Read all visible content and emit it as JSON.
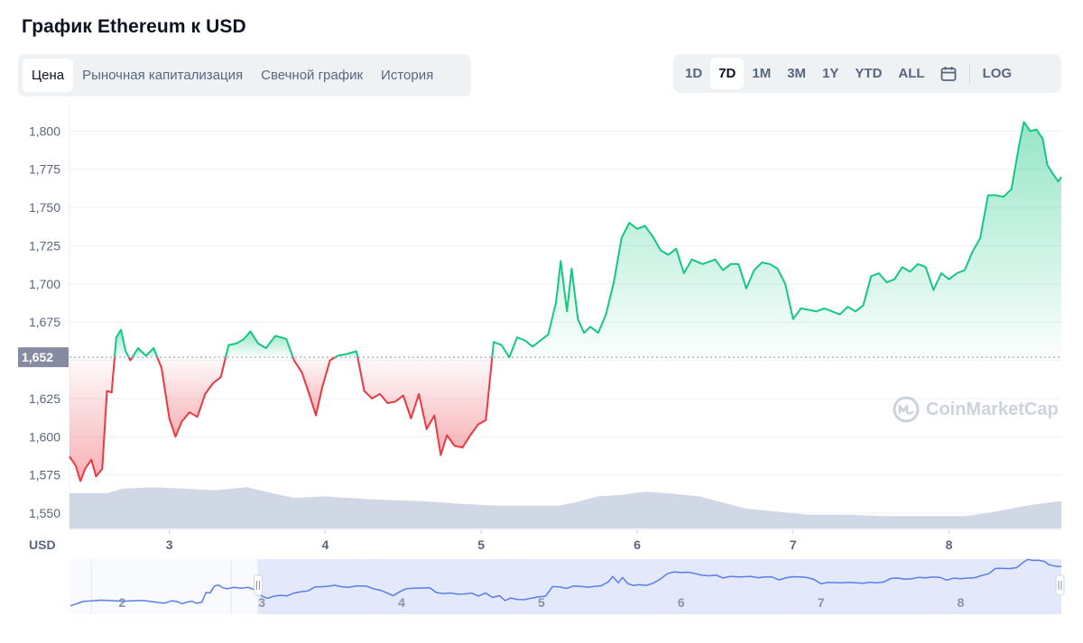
{
  "page_title": "График Ethereum к USD",
  "tabs": [
    {
      "label": "Цена",
      "active": true
    },
    {
      "label": "Рыночная капитализация",
      "active": false
    },
    {
      "label": "Свечной график",
      "active": false
    },
    {
      "label": "История",
      "active": false
    }
  ],
  "ranges": [
    {
      "label": "1D",
      "active": false
    },
    {
      "label": "7D",
      "active": true
    },
    {
      "label": "1M",
      "active": false
    },
    {
      "label": "3M",
      "active": false
    },
    {
      "label": "1Y",
      "active": false
    },
    {
      "label": "YTD",
      "active": false
    },
    {
      "label": "ALL",
      "active": false
    }
  ],
  "calendar_icon": "calendar-icon",
  "log_label": "LOG",
  "watermark": "CoinMarketCap",
  "colors": {
    "up": "#16c784",
    "down": "#ea3943",
    "volume": "#cfd6e4",
    "navigator": "#5b7de6",
    "accent_bg": "#eff2f5"
  },
  "chart_data": {
    "type": "line",
    "title": "",
    "currency_label": "USD",
    "ylim": [
      1540,
      1812
    ],
    "yticks": [
      1550,
      1575,
      1600,
      1625,
      1650,
      1675,
      1700,
      1725,
      1750,
      1775,
      1800
    ],
    "ytick_labels": [
      "1,550",
      "1,575",
      "1,600",
      "1,625",
      "1,650",
      "1,675",
      "1,700",
      "1,725",
      "1,750",
      "1,775",
      "1,800"
    ],
    "baseline": 1652,
    "baseline_label": "1,652",
    "xlim": [
      2.36,
      8.72
    ],
    "xticks": [
      3,
      4,
      5,
      6,
      7,
      8
    ],
    "xtick_labels": [
      "3",
      "4",
      "5",
      "6",
      "7",
      "8"
    ],
    "series": [
      {
        "points": [
          [
            2.36,
            1587
          ],
          [
            2.4,
            1581
          ],
          [
            2.43,
            1571
          ],
          [
            2.46,
            1579
          ],
          [
            2.5,
            1585
          ],
          [
            2.53,
            1574
          ],
          [
            2.57,
            1579
          ],
          [
            2.6,
            1630
          ],
          [
            2.63,
            1629
          ],
          [
            2.66,
            1665
          ],
          [
            2.69,
            1670
          ],
          [
            2.72,
            1656
          ],
          [
            2.75,
            1650
          ],
          [
            2.8,
            1658
          ],
          [
            2.85,
            1653
          ],
          [
            2.9,
            1658
          ],
          [
            2.95,
            1645
          ],
          [
            3.0,
            1612
          ],
          [
            3.04,
            1600
          ],
          [
            3.08,
            1610
          ],
          [
            3.13,
            1616
          ],
          [
            3.18,
            1613
          ],
          [
            3.23,
            1628
          ],
          [
            3.28,
            1635
          ],
          [
            3.33,
            1639
          ],
          [
            3.38,
            1660
          ],
          [
            3.43,
            1661
          ],
          [
            3.48,
            1664
          ],
          [
            3.52,
            1669
          ],
          [
            3.57,
            1661
          ],
          [
            3.62,
            1658
          ],
          [
            3.68,
            1666
          ],
          [
            3.75,
            1664
          ],
          [
            3.8,
            1650
          ],
          [
            3.85,
            1642
          ],
          [
            3.9,
            1627
          ],
          [
            3.94,
            1614
          ],
          [
            3.98,
            1632
          ],
          [
            4.03,
            1650
          ],
          [
            4.08,
            1653
          ],
          [
            4.13,
            1654
          ],
          [
            4.2,
            1656
          ],
          [
            4.25,
            1630
          ],
          [
            4.3,
            1625
          ],
          [
            4.35,
            1628
          ],
          [
            4.4,
            1622
          ],
          [
            4.45,
            1623
          ],
          [
            4.5,
            1627
          ],
          [
            4.55,
            1612
          ],
          [
            4.6,
            1628
          ],
          [
            4.65,
            1605
          ],
          [
            4.7,
            1614
          ],
          [
            4.74,
            1588
          ],
          [
            4.78,
            1601
          ],
          [
            4.83,
            1594
          ],
          [
            4.88,
            1593
          ],
          [
            4.93,
            1601
          ],
          [
            4.98,
            1608
          ],
          [
            5.03,
            1611
          ],
          [
            5.08,
            1662
          ],
          [
            5.13,
            1660
          ],
          [
            5.18,
            1652
          ],
          [
            5.23,
            1665
          ],
          [
            5.28,
            1663
          ],
          [
            5.33,
            1659
          ],
          [
            5.38,
            1663
          ],
          [
            5.43,
            1667
          ],
          [
            5.48,
            1688
          ],
          [
            5.51,
            1715
          ],
          [
            5.55,
            1682
          ],
          [
            5.58,
            1710
          ],
          [
            5.62,
            1677
          ],
          [
            5.66,
            1668
          ],
          [
            5.7,
            1672
          ],
          [
            5.75,
            1668
          ],
          [
            5.8,
            1680
          ],
          [
            5.85,
            1701
          ],
          [
            5.9,
            1730
          ],
          [
            5.95,
            1740
          ],
          [
            6.0,
            1736
          ],
          [
            6.05,
            1738
          ],
          [
            6.1,
            1731
          ],
          [
            6.15,
            1722
          ],
          [
            6.2,
            1719
          ],
          [
            6.25,
            1723
          ],
          [
            6.3,
            1707
          ],
          [
            6.35,
            1716
          ],
          [
            6.42,
            1713
          ],
          [
            6.5,
            1716
          ],
          [
            6.55,
            1709
          ],
          [
            6.6,
            1713
          ],
          [
            6.65,
            1713
          ],
          [
            6.7,
            1697
          ],
          [
            6.75,
            1709
          ],
          [
            6.8,
            1714
          ],
          [
            6.85,
            1713
          ],
          [
            6.9,
            1710
          ],
          [
            6.95,
            1700
          ],
          [
            7.0,
            1677
          ],
          [
            7.05,
            1684
          ],
          [
            7.1,
            1683
          ],
          [
            7.15,
            1682
          ],
          [
            7.2,
            1684
          ],
          [
            7.25,
            1682
          ],
          [
            7.3,
            1680
          ],
          [
            7.35,
            1685
          ],
          [
            7.4,
            1682
          ],
          [
            7.45,
            1686
          ],
          [
            7.5,
            1705
          ],
          [
            7.55,
            1707
          ],
          [
            7.6,
            1701
          ],
          [
            7.65,
            1703
          ],
          [
            7.7,
            1711
          ],
          [
            7.75,
            1708
          ],
          [
            7.8,
            1713
          ],
          [
            7.85,
            1711
          ],
          [
            7.9,
            1696
          ],
          [
            7.95,
            1707
          ],
          [
            8.0,
            1703
          ],
          [
            8.05,
            1707
          ],
          [
            8.1,
            1709
          ],
          [
            8.15,
            1721
          ],
          [
            8.2,
            1730
          ],
          [
            8.25,
            1758
          ],
          [
            8.3,
            1758
          ],
          [
            8.35,
            1757
          ],
          [
            8.4,
            1762
          ],
          [
            8.45,
            1791
          ],
          [
            8.48,
            1806
          ],
          [
            8.52,
            1800
          ],
          [
            8.56,
            1801
          ],
          [
            8.6,
            1795
          ],
          [
            8.63,
            1778
          ],
          [
            8.66,
            1773
          ],
          [
            8.7,
            1767
          ],
          [
            8.72,
            1770
          ]
        ]
      }
    ],
    "volume": {
      "points": [
        [
          2.36,
          1563
        ],
        [
          2.6,
          1563
        ],
        [
          2.7,
          1566
        ],
        [
          2.9,
          1567
        ],
        [
          3.1,
          1566
        ],
        [
          3.3,
          1565
        ],
        [
          3.5,
          1567
        ],
        [
          3.62,
          1564
        ],
        [
          3.8,
          1560
        ],
        [
          4.0,
          1561
        ],
        [
          4.3,
          1559
        ],
        [
          4.6,
          1558
        ],
        [
          4.9,
          1556
        ],
        [
          5.1,
          1555
        ],
        [
          5.3,
          1555
        ],
        [
          5.5,
          1555
        ],
        [
          5.6,
          1557
        ],
        [
          5.75,
          1561
        ],
        [
          5.9,
          1562
        ],
        [
          6.05,
          1564
        ],
        [
          6.2,
          1563
        ],
        [
          6.4,
          1561
        ],
        [
          6.55,
          1557
        ],
        [
          6.7,
          1553
        ],
        [
          6.9,
          1551
        ],
        [
          7.1,
          1549
        ],
        [
          7.35,
          1549
        ],
        [
          7.6,
          1548
        ],
        [
          7.9,
          1548
        ],
        [
          8.1,
          1548
        ],
        [
          8.3,
          1551
        ],
        [
          8.5,
          1555
        ],
        [
          8.72,
          1558
        ]
      ]
    },
    "navigator": {
      "xticks": [
        2,
        3,
        4,
        5,
        6,
        7,
        8
      ],
      "xtick_labels": [
        "2",
        "3",
        "4",
        "5",
        "6",
        "7",
        "8"
      ],
      "selected_range": [
        2.36,
        8.72
      ]
    }
  }
}
